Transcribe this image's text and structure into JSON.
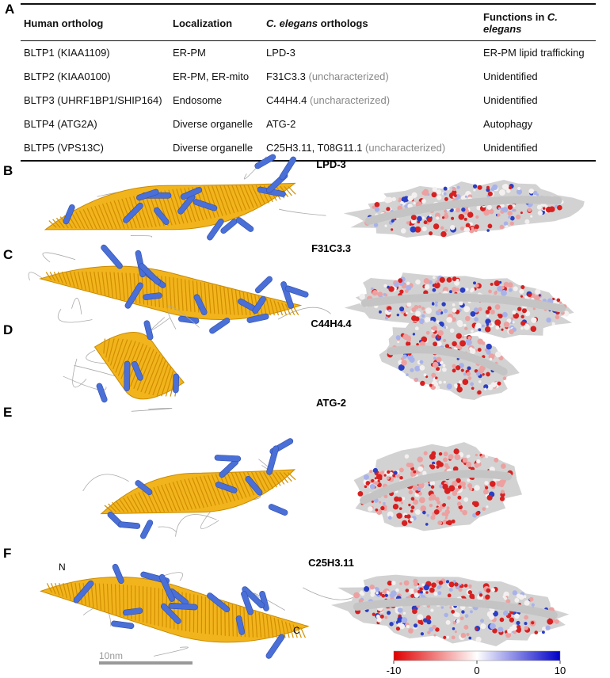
{
  "panel_labels": [
    "A",
    "B",
    "C",
    "D",
    "E",
    "F"
  ],
  "table": {
    "header": [
      "Human ortholog",
      "Localization",
      {
        "italic": "C. elegans",
        "rest": "orthologs"
      },
      {
        "text": "Functions in",
        "italic": "C. elegans"
      }
    ],
    "rows": [
      [
        "BLTP1 (KIAA1109)",
        "ER-PM",
        {
          "name": "LPD-3"
        },
        "ER-PM lipid trafficking"
      ],
      [
        "BLTP2 (KIAA0100)",
        "ER-PM, ER-mito",
        {
          "name": "F31C3.3",
          "note": "(uncharacterized)"
        },
        "Unidentified"
      ],
      [
        "BLTP3 (UHRF1BP1/SHIP164)",
        "Endosome",
        {
          "name": "C44H4.4",
          "note": "(uncharacterized)"
        },
        "Unidentified"
      ],
      [
        "BLTP4 (ATG2A)",
        "Diverse organelle",
        {
          "name": "ATG-2"
        },
        "Autophagy"
      ],
      [
        "BLTP5 (VPS13C)",
        "Diverse organelle",
        {
          "name": "C25H3.11, T08G11.1",
          "note": "(uncharacterized)"
        },
        "Unidentified"
      ]
    ]
  },
  "structures": [
    "LPD-3",
    "F31C3.3",
    "C44H4.4",
    "ATG-2",
    "C25H3.11"
  ],
  "termini": [
    "N",
    "C"
  ],
  "scale_bar": "10nm",
  "colorbar": {
    "lim": [
      -10,
      10
    ],
    "ticks": [
      -10,
      0,
      10
    ],
    "colors": [
      "#e00000",
      "#ffffff",
      "#0000c8"
    ]
  }
}
